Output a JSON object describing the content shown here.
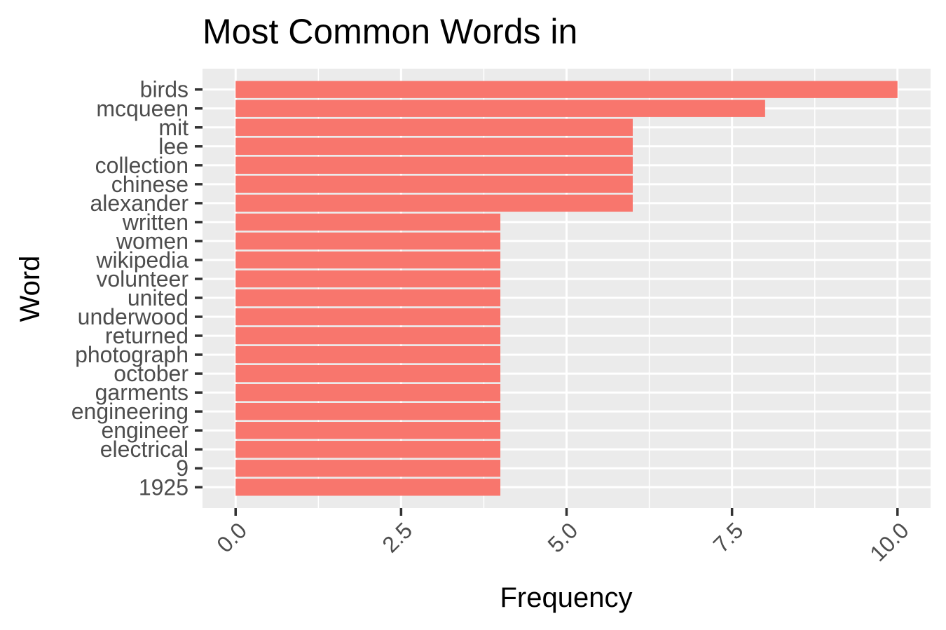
{
  "chart_data": {
    "type": "bar",
    "orientation": "horizontal",
    "title": "Most Common Words in",
    "xlabel": "Frequency",
    "ylabel": "Word",
    "categories": [
      "birds",
      "mcqueen",
      "mit",
      "lee",
      "collection",
      "chinese",
      "alexander",
      "written",
      "women",
      "wikipedia",
      "volunteer",
      "united",
      "underwood",
      "returned",
      "photograph",
      "october",
      "garments",
      "engineering",
      "engineer",
      "electrical",
      "9",
      "1925"
    ],
    "values": [
      10,
      8,
      6,
      6,
      6,
      6,
      6,
      4,
      4,
      4,
      4,
      4,
      4,
      4,
      4,
      4,
      4,
      4,
      4,
      4,
      4,
      4
    ],
    "xlim": [
      -0.5,
      10.5
    ],
    "x_ticks": [
      0,
      2.5,
      5,
      7.5,
      10
    ],
    "x_tick_labels": [
      "0.0",
      "2.5",
      "5.0",
      "7.5",
      "10.0"
    ],
    "bar_color": "#f8766d",
    "panel_color": "#ebebeb",
    "grid": true
  }
}
